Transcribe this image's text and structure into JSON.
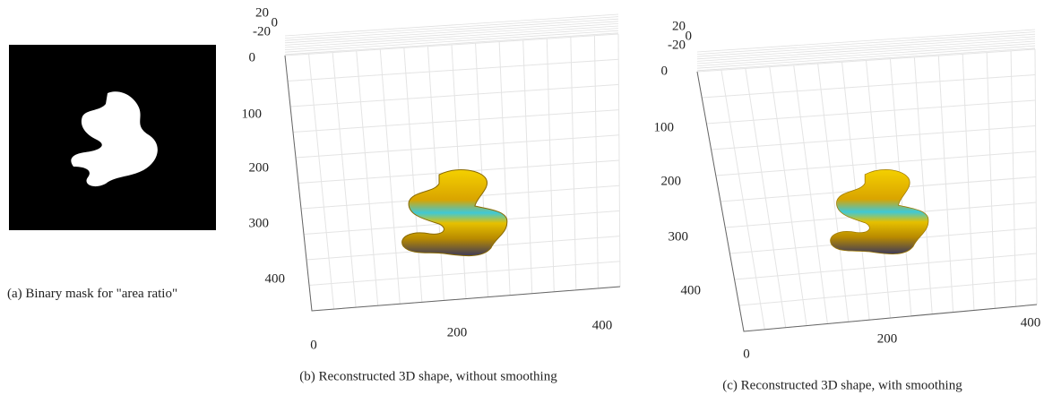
{
  "panels": [
    {
      "caption": "(a) Binary mask for \"area ratio\""
    },
    {
      "caption": "(b) Reconstructed 3D shape, without smoothing",
      "z_ticks": [
        20,
        0,
        -20
      ],
      "y_ticks": [
        0,
        100,
        200,
        300,
        400
      ],
      "x_ticks": [
        0,
        200,
        400
      ]
    },
    {
      "caption": "(c) Reconstructed 3D shape, with smoothing",
      "z_ticks": [
        20,
        0,
        -20
      ],
      "y_ticks": [
        0,
        100,
        200,
        300,
        400
      ],
      "x_ticks": [
        0,
        200,
        400
      ]
    }
  ]
}
